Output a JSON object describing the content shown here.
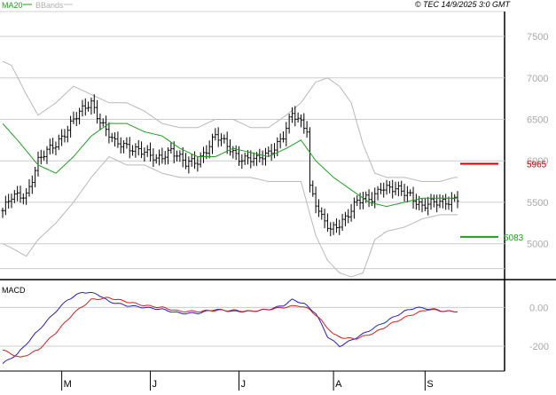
{
  "header": {
    "legend_ma": "MA20",
    "legend_bb": "BBands",
    "copyright": "© TEC 14/9/2025 3:0 GMT"
  },
  "colors": {
    "ma": "#1f9e1f",
    "bands": "#b8b8b8",
    "price": "#000000",
    "resistance": "#cc0000",
    "support": "#1f9e1f",
    "macd": "#2020c0",
    "signal": "#d02020",
    "grid": "#cccccc"
  },
  "chart_data": [
    {
      "type": "ohlc",
      "ylim": [
        4600,
        7800
      ],
      "y_ticks": [
        5000,
        5500,
        6000,
        6500,
        7000,
        7500
      ],
      "y_tick_labels": [
        "5000",
        "5500",
        "6000",
        "6500",
        "7000",
        "7500"
      ],
      "x_tick_labels": [
        "M",
        "J",
        "J",
        "A",
        "S"
      ],
      "x_tick_bar_index": [
        20,
        50,
        80,
        112,
        143
      ],
      "bar_count": 155,
      "close_anchors": [
        [
          0,
          5400
        ],
        [
          3,
          5550
        ],
        [
          8,
          5600
        ],
        [
          12,
          6000
        ],
        [
          18,
          6200
        ],
        [
          24,
          6500
        ],
        [
          30,
          6700
        ],
        [
          33,
          6500
        ],
        [
          38,
          6200
        ],
        [
          46,
          6150
        ],
        [
          52,
          6000
        ],
        [
          57,
          6150
        ],
        [
          62,
          5950
        ],
        [
          66,
          6000
        ],
        [
          72,
          6300
        ],
        [
          80,
          6050
        ],
        [
          86,
          6000
        ],
        [
          90,
          6100
        ],
        [
          95,
          6300
        ],
        [
          98,
          6550
        ],
        [
          103,
          6400
        ],
        [
          104,
          5700
        ],
        [
          108,
          5300
        ],
        [
          111,
          5150
        ],
        [
          114,
          5250
        ],
        [
          120,
          5500
        ],
        [
          125,
          5550
        ],
        [
          128,
          5700
        ],
        [
          132,
          5650
        ],
        [
          138,
          5600
        ],
        [
          142,
          5450
        ],
        [
          148,
          5500
        ],
        [
          153,
          5550
        ]
      ],
      "ma_anchors": [
        [
          0,
          6450
        ],
        [
          5,
          6250
        ],
        [
          12,
          5950
        ],
        [
          18,
          5850
        ],
        [
          24,
          6050
        ],
        [
          30,
          6300
        ],
        [
          36,
          6450
        ],
        [
          42,
          6450
        ],
        [
          48,
          6350
        ],
        [
          54,
          6300
        ],
        [
          60,
          6150
        ],
        [
          66,
          6050
        ],
        [
          72,
          6050
        ],
        [
          78,
          6150
        ],
        [
          84,
          6100
        ],
        [
          90,
          6050
        ],
        [
          96,
          6150
        ],
        [
          101,
          6250
        ],
        [
          106,
          6000
        ],
        [
          112,
          5800
        ],
        [
          118,
          5650
        ],
        [
          124,
          5500
        ],
        [
          130,
          5450
        ],
        [
          136,
          5500
        ],
        [
          142,
          5550
        ],
        [
          148,
          5550
        ],
        [
          153,
          5550
        ]
      ],
      "bb_upper_anchors": [
        [
          0,
          7200
        ],
        [
          3,
          7150
        ],
        [
          8,
          6800
        ],
        [
          12,
          6550
        ],
        [
          18,
          6700
        ],
        [
          24,
          6900
        ],
        [
          30,
          6800
        ],
        [
          36,
          6700
        ],
        [
          42,
          6700
        ],
        [
          48,
          6600
        ],
        [
          54,
          6450
        ],
        [
          60,
          6400
        ],
        [
          66,
          6400
        ],
        [
          72,
          6500
        ],
        [
          78,
          6500
        ],
        [
          84,
          6400
        ],
        [
          90,
          6400
        ],
        [
          96,
          6550
        ],
        [
          101,
          6700
        ],
        [
          106,
          6950
        ],
        [
          110,
          7000
        ],
        [
          114,
          6900
        ],
        [
          118,
          6700
        ],
        [
          122,
          6200
        ],
        [
          126,
          5850
        ],
        [
          130,
          5800
        ],
        [
          136,
          5800
        ],
        [
          142,
          5750
        ],
        [
          148,
          5750
        ],
        [
          153,
          5800
        ]
      ],
      "bb_lower_anchors": [
        [
          0,
          5000
        ],
        [
          3,
          4950
        ],
        [
          8,
          4850
        ],
        [
          12,
          5050
        ],
        [
          18,
          5250
        ],
        [
          24,
          5500
        ],
        [
          30,
          5800
        ],
        [
          36,
          6050
        ],
        [
          42,
          5950
        ],
        [
          48,
          5950
        ],
        [
          54,
          5850
        ],
        [
          60,
          5800
        ],
        [
          66,
          5800
        ],
        [
          72,
          5800
        ],
        [
          78,
          5800
        ],
        [
          84,
          5800
        ],
        [
          90,
          5750
        ],
        [
          96,
          5750
        ],
        [
          101,
          5750
        ],
        [
          106,
          5100
        ],
        [
          110,
          4800
        ],
        [
          114,
          4650
        ],
        [
          118,
          4600
        ],
        [
          122,
          4650
        ],
        [
          126,
          5050
        ],
        [
          130,
          5150
        ],
        [
          136,
          5200
        ],
        [
          142,
          5300
        ],
        [
          148,
          5350
        ],
        [
          153,
          5350
        ]
      ],
      "resistance": {
        "value": 5965,
        "label": "5965"
      },
      "support": {
        "value": 5083,
        "label": "5083"
      }
    },
    {
      "type": "line",
      "title": "MACD",
      "ylim": [
        -310,
        130
      ],
      "y_ticks": [
        0,
        -200
      ],
      "y_tick_labels": [
        "0.00",
        "-200"
      ],
      "series": [
        {
          "key": "macd",
          "anchors": [
            [
              0,
              -290
            ],
            [
              5,
              -240
            ],
            [
              12,
              -120
            ],
            [
              18,
              -20
            ],
            [
              22,
              40
            ],
            [
              27,
              80
            ],
            [
              32,
              70
            ],
            [
              36,
              30
            ],
            [
              42,
              10
            ],
            [
              48,
              0
            ],
            [
              54,
              -10
            ],
            [
              60,
              -30
            ],
            [
              66,
              -30
            ],
            [
              72,
              -10
            ],
            [
              78,
              -20
            ],
            [
              84,
              -20
            ],
            [
              90,
              -10
            ],
            [
              95,
              10
            ],
            [
              98,
              40
            ],
            [
              102,
              20
            ],
            [
              106,
              -30
            ],
            [
              110,
              -150
            ],
            [
              114,
              -200
            ],
            [
              118,
              -170
            ],
            [
              124,
              -120
            ],
            [
              130,
              -70
            ],
            [
              136,
              -20
            ],
            [
              140,
              0
            ],
            [
              146,
              -10
            ],
            [
              150,
              -20
            ],
            [
              153,
              -20
            ]
          ]
        },
        {
          "key": "signal",
          "anchors": [
            [
              0,
              -220
            ],
            [
              6,
              -260
            ],
            [
              12,
              -220
            ],
            [
              18,
              -130
            ],
            [
              24,
              -30
            ],
            [
              30,
              40
            ],
            [
              36,
              50
            ],
            [
              42,
              30
            ],
            [
              48,
              10
            ],
            [
              54,
              0
            ],
            [
              60,
              -20
            ],
            [
              66,
              -20
            ],
            [
              72,
              -15
            ],
            [
              78,
              -15
            ],
            [
              84,
              -20
            ],
            [
              90,
              -10
            ],
            [
              95,
              0
            ],
            [
              100,
              10
            ],
            [
              104,
              -10
            ],
            [
              108,
              -70
            ],
            [
              112,
              -140
            ],
            [
              116,
              -160
            ],
            [
              120,
              -160
            ],
            [
              126,
              -130
            ],
            [
              132,
              -80
            ],
            [
              138,
              -40
            ],
            [
              144,
              -10
            ],
            [
              150,
              -20
            ],
            [
              153,
              -20
            ]
          ]
        }
      ]
    }
  ]
}
